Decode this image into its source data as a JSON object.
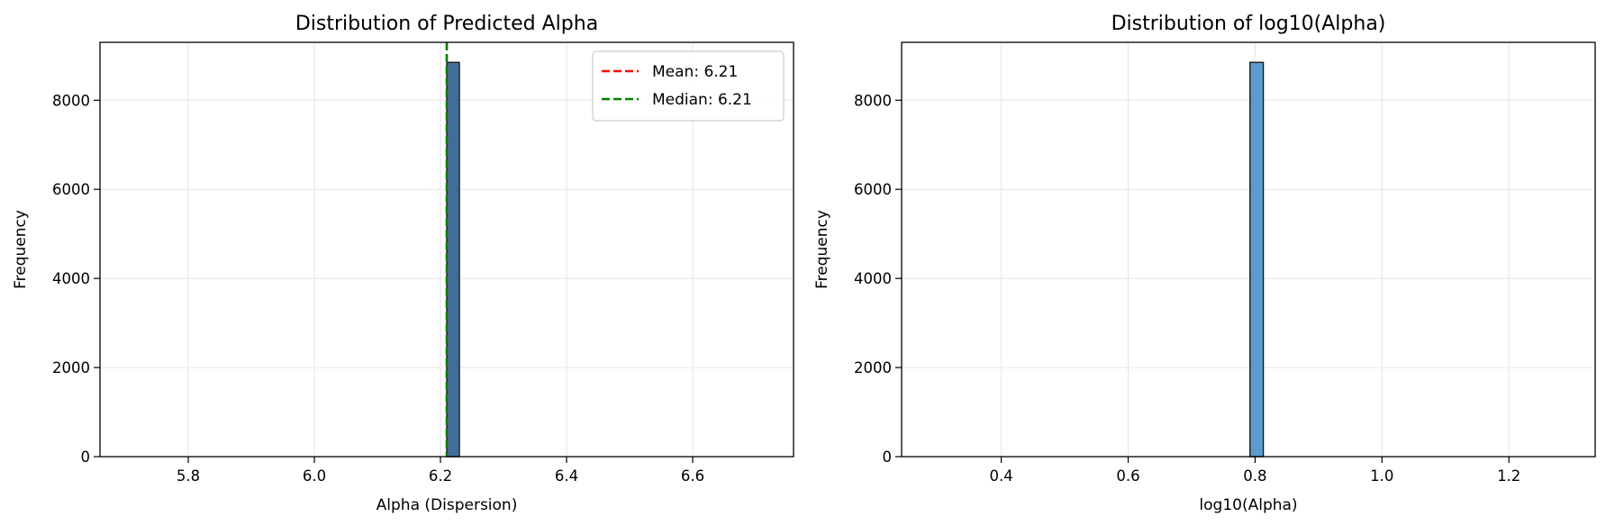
{
  "chart_data": [
    {
      "type": "histogram",
      "title": "Distribution of Predicted Alpha",
      "xlabel": "Alpha (Dispersion)",
      "ylabel": "Frequency",
      "xlim": [
        5.66,
        6.76
      ],
      "ylim": [
        0,
        9300
      ],
      "x_ticks": [
        5.8,
        6.0,
        6.2,
        6.4,
        6.6
      ],
      "x_tick_labels": [
        "5.8",
        "6.0",
        "6.2",
        "6.4",
        "6.6"
      ],
      "y_ticks": [
        0,
        2000,
        4000,
        6000,
        8000
      ],
      "y_tick_labels": [
        "0",
        "2000",
        "4000",
        "6000",
        "8000"
      ],
      "grid": true,
      "bar_color": "#3f6f99",
      "bars": [
        {
          "x_start": 6.21,
          "x_end": 6.23,
          "count": 8850
        }
      ],
      "reference_lines": [
        {
          "label": "Mean: 6.21",
          "x": 6.21,
          "color": "#ff0000",
          "style": "dashed"
        },
        {
          "label": "Median: 6.21",
          "x": 6.21,
          "color": "#008000",
          "style": "dashed"
        }
      ],
      "legend_position": "top-right"
    },
    {
      "type": "histogram",
      "title": "Distribution of log10(Alpha)",
      "xlabel": "log10(Alpha)",
      "ylabel": "Frequency",
      "xlim": [
        0.243,
        1.336
      ],
      "ylim": [
        0,
        9300
      ],
      "x_ticks": [
        0.4,
        0.6,
        0.8,
        1.0,
        1.2
      ],
      "x_tick_labels": [
        "0.4",
        "0.6",
        "0.8",
        "1.0",
        "1.2"
      ],
      "y_ticks": [
        0,
        2000,
        4000,
        6000,
        8000
      ],
      "y_tick_labels": [
        "0",
        "2000",
        "4000",
        "6000",
        "8000"
      ],
      "grid": true,
      "bar_color": "#5b9bd0",
      "bars": [
        {
          "x_start": 0.792,
          "x_end": 0.813,
          "count": 8850
        }
      ],
      "reference_lines": [],
      "legend_position": ""
    }
  ]
}
